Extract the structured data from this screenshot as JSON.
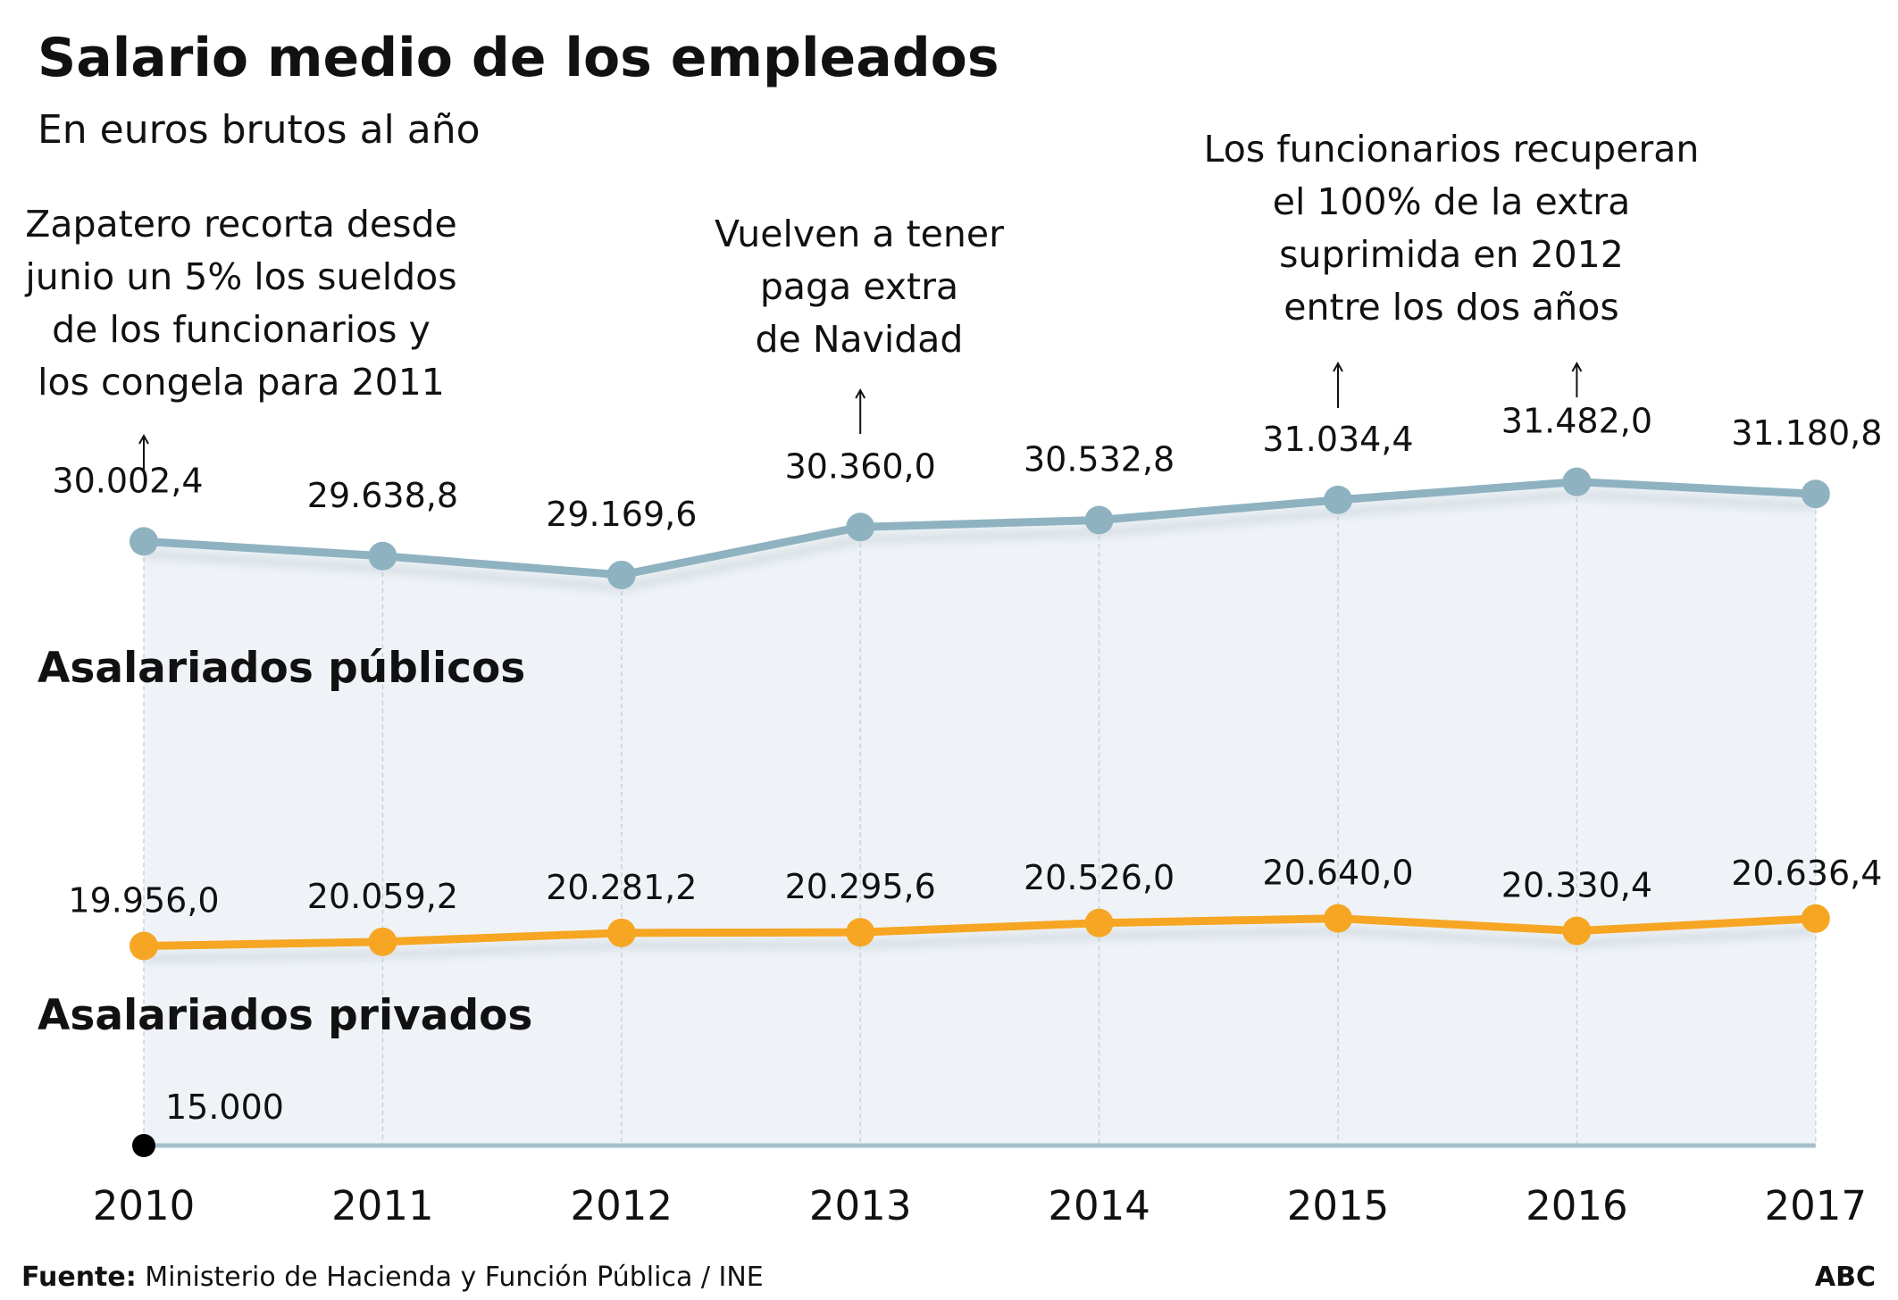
{
  "title": "Salario medio de los empleados",
  "subtitle": "En euros brutos al año",
  "footer": {
    "source_label": "Fuente:",
    "source": " Ministerio de Hacienda y Función Pública / INE",
    "brand": "ABC"
  },
  "chart_data": {
    "type": "line",
    "title": "Salario medio de los empleados",
    "subtitle": "En euros brutos al año",
    "categories": [
      "2010",
      "2011",
      "2012",
      "2013",
      "2014",
      "2015",
      "2016",
      "2017"
    ],
    "baseline_label": "15.000",
    "ylim": [
      15000,
      32000
    ],
    "grid": "vertical dashed",
    "series": [
      {
        "name": "Asalariados públicos",
        "color": "#8fb2c1",
        "values": [
          30002.4,
          29638.8,
          29169.6,
          30360.0,
          30532.8,
          31034.4,
          31482.0,
          31180.8
        ],
        "labels": [
          "30.002,4",
          "29.638,8",
          "29.169,6",
          "30.360,0",
          "30.532,8",
          "31.034,4",
          "31.482,0",
          "31.180,8"
        ]
      },
      {
        "name": "Asalariados privados",
        "color": "#f6a623",
        "values": [
          19956.0,
          20059.2,
          20281.2,
          20295.6,
          20526.0,
          20640.0,
          20330.4,
          20636.4
        ],
        "labels": [
          "19.956,0",
          "20.059,2",
          "20.281,2",
          "20.295,6",
          "20.526,0",
          "20.640,0",
          "20.330,4",
          "20.636,4"
        ]
      }
    ],
    "annotations": [
      {
        "year": "2010",
        "lines": [
          "Zapatero recorta desde",
          "junio un 5% los sueldos",
          "de los funcionarios y",
          "los congela para 2011"
        ]
      },
      {
        "year": "2013",
        "lines": [
          "Vuelven a tener",
          "paga extra",
          "de Navidad"
        ]
      },
      {
        "years": [
          "2015",
          "2016"
        ],
        "lines": [
          "Los funcionarios recuperan",
          "el 100% de la extra",
          "suprimida en 2012",
          "entre los dos años"
        ]
      }
    ]
  }
}
